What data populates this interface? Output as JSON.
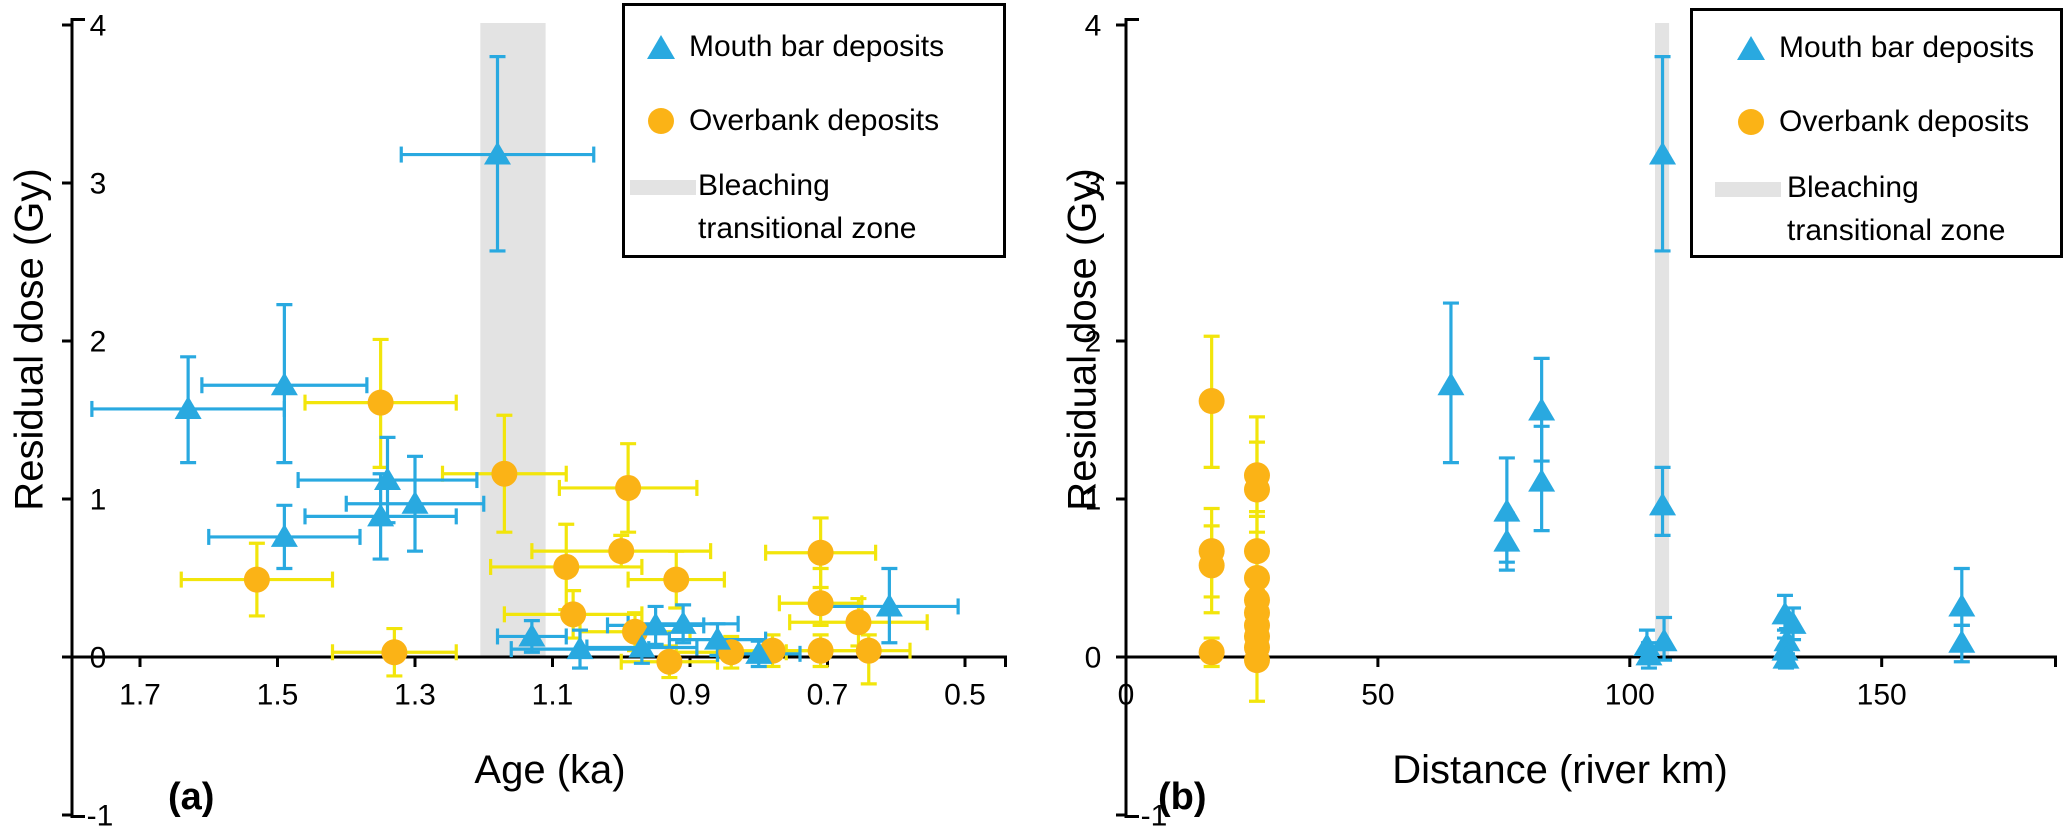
{
  "colors": {
    "mouth_bar": "#29A9E0",
    "overbank": "#FBB316",
    "overbank_error": "#F2E50B",
    "bleaching_zone": "#E3E3E3",
    "axis": "#000000",
    "background": "#FFFFFF"
  },
  "legend": {
    "mouth_bar": "Mouth bar deposits",
    "overbank": "Overbank deposits",
    "bleaching_line1": "Bleaching",
    "bleaching_line2": "transitional zone"
  },
  "chart_data": [
    {
      "type": "scatter",
      "panel_label": "(a)",
      "xlabel": "Age (ka)",
      "ylabel": "Residual dose (Gy)",
      "x_axis": {
        "ticks": [
          1.7,
          1.5,
          1.3,
          1.1,
          0.9,
          0.7,
          0.5
        ],
        "tick_labels": [
          "1.7",
          "1.5",
          "1.3",
          "1.1",
          "0.9",
          "0.7",
          "0.5"
        ],
        "reversed": true,
        "range": [
          1.8,
          0.44
        ]
      },
      "y_axis": {
        "ticks": [
          4,
          3,
          2,
          1,
          0,
          -1
        ],
        "tick_labels": [
          "4",
          "3",
          "2",
          "1",
          "0",
          "-1"
        ],
        "range": [
          -1.08,
          4.04
        ]
      },
      "bleaching_zone_x": [
        1.205,
        1.11
      ],
      "point_format": "[age_ka, dose_Gy, xerr_minus, xerr_plus, yerr_minus, yerr_plus]",
      "series": [
        {
          "name": "Mouth bar deposits",
          "marker": "triangle",
          "points": [
            [
              1.63,
              1.57,
              0.14,
              0.14,
              0.34,
              0.33
            ],
            [
              1.49,
              1.72,
              0.12,
              0.12,
              0.49,
              0.51
            ],
            [
              1.49,
              0.76,
              0.11,
              0.11,
              0.2,
              0.2
            ],
            [
              1.34,
              1.12,
              0.13,
              0.13,
              0.27,
              0.27
            ],
            [
              1.35,
              0.89,
              0.11,
              0.11,
              0.27,
              0.27
            ],
            [
              1.3,
              0.97,
              0.1,
              0.1,
              0.3,
              0.3
            ],
            [
              1.18,
              3.18,
              0.14,
              0.14,
              0.61,
              0.62
            ],
            [
              1.13,
              0.13,
              0.05,
              0.05,
              0.1,
              0.1
            ],
            [
              1.06,
              0.05,
              0.1,
              0.1,
              0.12,
              0.12
            ],
            [
              0.97,
              0.06,
              0.08,
              0.08,
              0.1,
              0.1
            ],
            [
              0.95,
              0.2,
              0.07,
              0.07,
              0.12,
              0.12
            ],
            [
              0.91,
              0.21,
              0.08,
              0.08,
              0.12,
              0.12
            ],
            [
              0.86,
              0.11,
              0.07,
              0.07,
              0.1,
              0.1
            ],
            [
              0.8,
              0.02,
              0.06,
              0.06,
              0.08,
              0.08
            ],
            [
              0.61,
              0.32,
              0.1,
              0.1,
              0.23,
              0.24
            ]
          ]
        },
        {
          "name": "Overbank deposits",
          "marker": "circle",
          "points": [
            [
              1.53,
              0.49,
              0.11,
              0.11,
              0.23,
              0.23
            ],
            [
              1.35,
              1.61,
              0.11,
              0.11,
              0.41,
              0.4
            ],
            [
              1.33,
              0.03,
              0.09,
              0.09,
              0.15,
              0.15
            ],
            [
              1.17,
              1.16,
              0.09,
              0.09,
              0.37,
              0.37
            ],
            [
              1.08,
              0.57,
              0.11,
              0.11,
              0.27,
              0.27
            ],
            [
              1.07,
              0.27,
              0.1,
              0.1,
              0.15,
              0.15
            ],
            [
              0.99,
              1.07,
              0.1,
              0.1,
              0.28,
              0.28
            ],
            [
              1.0,
              0.67,
              0.13,
              0.13,
              0.1,
              0.1
            ],
            [
              0.98,
              0.16,
              0.08,
              0.08,
              0.12,
              0.12
            ],
            [
              0.93,
              -0.03,
              0.07,
              0.07,
              0.1,
              0.1
            ],
            [
              0.92,
              0.49,
              0.07,
              0.07,
              0.18,
              0.18
            ],
            [
              0.84,
              0.03,
              0.08,
              0.08,
              0.1,
              0.1
            ],
            [
              0.78,
              0.04,
              0.07,
              0.07,
              0.1,
              0.1
            ],
            [
              0.71,
              0.66,
              0.08,
              0.08,
              0.22,
              0.22
            ],
            [
              0.71,
              0.34,
              0.06,
              0.06,
              0.14,
              0.22
            ],
            [
              0.71,
              0.04,
              0.06,
              0.06,
              0.1,
              0.1
            ],
            [
              0.655,
              0.22,
              0.1,
              0.1,
              0.15,
              0.15
            ],
            [
              0.64,
              0.04,
              0.06,
              0.06,
              0.21,
              0.1
            ]
          ]
        }
      ]
    },
    {
      "type": "scatter",
      "panel_label": "(b)",
      "xlabel": "Distance (river km)",
      "ylabel": "Residual dose (Gy)",
      "x_axis": {
        "ticks": [
          0,
          50,
          100,
          150
        ],
        "tick_labels": [
          "0",
          "50",
          "100",
          "150"
        ],
        "reversed": false,
        "range": [
          0,
          184.7
        ]
      },
      "y_axis": {
        "ticks": [
          4,
          3,
          2,
          1,
          0,
          -1
        ],
        "tick_labels": [
          "4",
          "3",
          "2",
          "1",
          "0",
          "-1"
        ],
        "range": [
          -1.08,
          4.04
        ]
      },
      "bleaching_zone_x": [
        105,
        107.8
      ],
      "point_format": "[distance_km, dose_Gy, yerr_minus, yerr_plus]",
      "series": [
        {
          "name": "Mouth bar deposits",
          "marker": "triangle",
          "points": [
            [
              64.5,
              1.72,
              0.49,
              0.52
            ],
            [
              75.6,
              0.92,
              0.32,
              0.34
            ],
            [
              75.6,
              0.73,
              0.18,
              0.18
            ],
            [
              82.5,
              1.56,
              0.32,
              0.33
            ],
            [
              82.5,
              1.11,
              0.31,
              0.35
            ],
            [
              106.5,
              3.18,
              0.61,
              0.62
            ],
            [
              106.5,
              0.96,
              0.19,
              0.24
            ],
            [
              106.8,
              0.1,
              0.12,
              0.15
            ],
            [
              103.4,
              0.07,
              0.1,
              0.1
            ],
            [
              103.8,
              0.01,
              0.08,
              0.08
            ],
            [
              130.8,
              0.27,
              0.1,
              0.12
            ],
            [
              132.4,
              0.21,
              0.1,
              0.1
            ],
            [
              131.2,
              0.1,
              0.08,
              0.08
            ],
            [
              130.8,
              0.04,
              0.08,
              0.08
            ],
            [
              131.0,
              -0.01,
              0.06,
              0.06
            ],
            [
              165.9,
              0.32,
              0.12,
              0.24
            ],
            [
              165.9,
              0.09,
              0.12,
              0.11
            ]
          ]
        },
        {
          "name": "Overbank deposits",
          "marker": "circle",
          "points": [
            [
              17,
              1.62,
              0.42,
              0.41
            ],
            [
              17,
              0.67,
              0.29,
              0.27
            ],
            [
              17,
              0.58,
              0.3,
              0.25
            ],
            [
              17,
              0.03,
              0.09,
              0.09
            ],
            [
              26,
              1.15,
              0.26,
              0.37
            ],
            [
              26,
              1.06,
              0.27,
              0.3
            ],
            [
              26,
              0.67,
              0.25,
              0.25
            ],
            [
              26,
              0.5,
              0.2,
              0.2
            ],
            [
              26,
              0.36,
              0.15,
              0.15
            ],
            [
              26,
              0.28,
              0.12,
              0.12
            ],
            [
              26,
              0.2,
              0.12,
              0.12
            ],
            [
              26,
              0.13,
              0.1,
              0.1
            ],
            [
              26,
              0.06,
              0.1,
              0.1
            ],
            [
              26,
              -0.02,
              0.26,
              0.12
            ]
          ]
        }
      ]
    }
  ]
}
